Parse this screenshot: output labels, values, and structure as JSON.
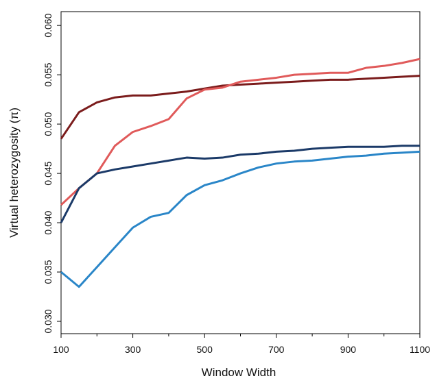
{
  "chart_data": {
    "type": "line",
    "x_label": "Window Width",
    "y_label": "Virtual heterozygosity (π)",
    "x": [
      100,
      150,
      200,
      250,
      300,
      350,
      400,
      450,
      500,
      550,
      600,
      650,
      700,
      750,
      800,
      850,
      900,
      950,
      1000,
      1050,
      1100
    ],
    "series": [
      {
        "color": "#7b1c1c",
        "values": [
          0.0485,
          0.0512,
          0.0522,
          0.0527,
          0.0529,
          0.0529,
          0.0531,
          0.0533,
          0.0536,
          0.0539,
          0.054,
          0.0541,
          0.0542,
          0.0543,
          0.0544,
          0.0545,
          0.0545,
          0.0546,
          0.0547,
          0.0548,
          0.0549
        ]
      },
      {
        "color": "#e05a5a",
        "values": [
          0.0418,
          0.0435,
          0.045,
          0.0478,
          0.0492,
          0.0498,
          0.0505,
          0.0526,
          0.0535,
          0.0537,
          0.0543,
          0.0545,
          0.0547,
          0.055,
          0.0551,
          0.0552,
          0.0552,
          0.0557,
          0.0559,
          0.0562,
          0.0566
        ]
      },
      {
        "color": "#1b3a68",
        "values": [
          0.04,
          0.0435,
          0.045,
          0.0454,
          0.0457,
          0.046,
          0.0463,
          0.0466,
          0.0465,
          0.0466,
          0.0469,
          0.047,
          0.0472,
          0.0473,
          0.0475,
          0.0476,
          0.0477,
          0.0477,
          0.0477,
          0.0478,
          0.0478
        ]
      },
      {
        "color": "#2a86c8",
        "values": [
          0.035,
          0.0335,
          0.0355,
          0.0375,
          0.0395,
          0.0406,
          0.041,
          0.0428,
          0.0438,
          0.0443,
          0.045,
          0.0456,
          0.046,
          0.0462,
          0.0463,
          0.0465,
          0.0467,
          0.0468,
          0.047,
          0.0471,
          0.0472
        ]
      }
    ],
    "xlim": [
      100,
      1100
    ],
    "xticks": [
      100,
      300,
      500,
      700,
      900,
      1100
    ],
    "xminorticks": [
      200,
      400,
      600,
      800,
      1000
    ],
    "ylim": [
      0.02875,
      0.0614
    ],
    "yticks": [
      {
        "value": 0.03,
        "label": "0.030"
      },
      {
        "value": 0.035,
        "label": "0.035"
      },
      {
        "value": 0.04,
        "label": "0.040"
      },
      {
        "value": 0.045,
        "label": "0.045"
      },
      {
        "value": 0.05,
        "label": "0.050"
      },
      {
        "value": 0.055,
        "label": "0.055"
      },
      {
        "value": 0.06,
        "label": "0.060"
      }
    ],
    "grid": false
  }
}
